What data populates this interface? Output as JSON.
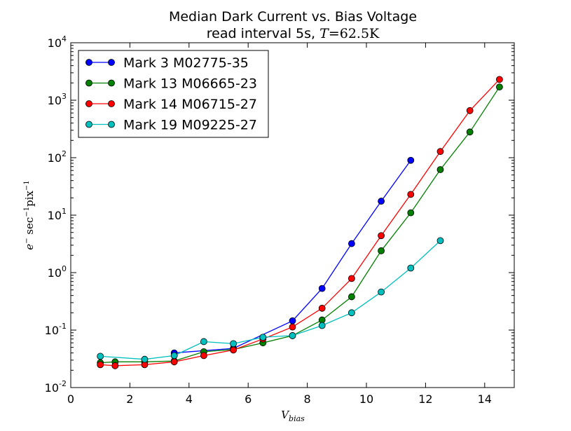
{
  "chart_data": {
    "type": "line",
    "title": "Median Dark Current vs. Bias Voltage",
    "subtitle": "read interval 5s, T=62.5K",
    "xlabel": "V_bias",
    "ylabel": "e⁻ sec⁻¹ pix⁻¹",
    "xlim": [
      0,
      15
    ],
    "ylim": [
      0.01,
      10000
    ],
    "yscale": "log",
    "grid": false,
    "legend_position": "top-left",
    "x_ticks": [
      0,
      2,
      4,
      6,
      8,
      10,
      12,
      14
    ],
    "y_ticks": [
      {
        "value": 0.01,
        "base": "10",
        "exp": "-2"
      },
      {
        "value": 0.1,
        "base": "10",
        "exp": "-1"
      },
      {
        "value": 1,
        "base": "10",
        "exp": "0"
      },
      {
        "value": 10,
        "base": "10",
        "exp": "1"
      },
      {
        "value": 100,
        "base": "10",
        "exp": "2"
      },
      {
        "value": 1000,
        "base": "10",
        "exp": "3"
      },
      {
        "value": 10000,
        "base": "10",
        "exp": "4"
      }
    ],
    "series": [
      {
        "name": "Mark 3 M02775-35",
        "color": "#0000ff",
        "x": [
          3.5,
          5.5,
          7.5,
          8.5,
          9.5,
          10.5,
          11.5
        ],
        "y": [
          0.04,
          0.048,
          0.145,
          0.53,
          3.2,
          17.5,
          90
        ]
      },
      {
        "name": "Mark 13 M06665-23",
        "color": "#008000",
        "x": [
          1,
          1.5,
          2.5,
          3.5,
          4.5,
          5.5,
          6.5,
          7.5,
          8.5,
          9.5,
          10.5,
          11.5,
          12.5,
          13.5,
          14.5
        ],
        "y": [
          0.027,
          0.028,
          0.028,
          0.029,
          0.042,
          0.046,
          0.06,
          0.08,
          0.15,
          0.38,
          2.4,
          11,
          62,
          280,
          1700
        ]
      },
      {
        "name": "Mark 14 M06715-27",
        "color": "#ff0000",
        "x": [
          1,
          1.5,
          2.5,
          3.5,
          4.5,
          5.5,
          6.5,
          7.5,
          8.5,
          9.5,
          10.5,
          11.5,
          12.5,
          13.5,
          14.5
        ],
        "y": [
          0.025,
          0.024,
          0.025,
          0.028,
          0.036,
          0.045,
          0.07,
          0.113,
          0.24,
          0.79,
          4.4,
          23,
          128,
          660,
          2300
        ]
      },
      {
        "name": "Mark 19 M09225-27",
        "color": "#00bfbf",
        "x": [
          1,
          2.5,
          3.5,
          4.5,
          5.5,
          6.5,
          7.5,
          8.5,
          9.5,
          10.5,
          11.5,
          12.5
        ],
        "y": [
          0.035,
          0.031,
          0.036,
          0.063,
          0.058,
          0.075,
          0.08,
          0.12,
          0.2,
          0.46,
          1.2,
          3.6
        ]
      }
    ]
  }
}
